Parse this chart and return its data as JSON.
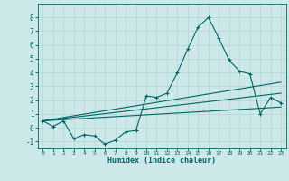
{
  "xlabel": "Humidex (Indice chaleur)",
  "ylabel": "",
  "background_color": "#cde8e8",
  "grid_color": "#b8d8d8",
  "line_color": "#006666",
  "xlim": [
    -0.5,
    23.5
  ],
  "ylim": [
    -1.5,
    9.0
  ],
  "yticks": [
    -1,
    0,
    1,
    2,
    3,
    4,
    5,
    6,
    7,
    8
  ],
  "xticks": [
    0,
    1,
    2,
    3,
    4,
    5,
    6,
    7,
    8,
    9,
    10,
    11,
    12,
    13,
    14,
    15,
    16,
    17,
    18,
    19,
    20,
    21,
    22,
    23
  ],
  "series1_x": [
    0,
    1,
    2,
    3,
    4,
    5,
    6,
    7,
    8,
    9,
    10,
    11,
    12,
    13,
    14,
    15,
    16,
    17,
    18,
    19,
    20,
    21,
    22,
    23
  ],
  "series1_y": [
    0.5,
    0.1,
    0.5,
    -0.8,
    -0.5,
    -0.6,
    -1.2,
    -0.9,
    -0.3,
    -0.2,
    2.3,
    2.2,
    2.5,
    4.0,
    5.7,
    7.3,
    8.0,
    6.5,
    4.9,
    4.1,
    3.9,
    1.0,
    2.2,
    1.8
  ],
  "series2_x": [
    0,
    23
  ],
  "series2_y": [
    0.5,
    3.3
  ],
  "series3_x": [
    0,
    23
  ],
  "series3_y": [
    0.5,
    2.5
  ],
  "series4_x": [
    0,
    23
  ],
  "series4_y": [
    0.5,
    1.5
  ]
}
